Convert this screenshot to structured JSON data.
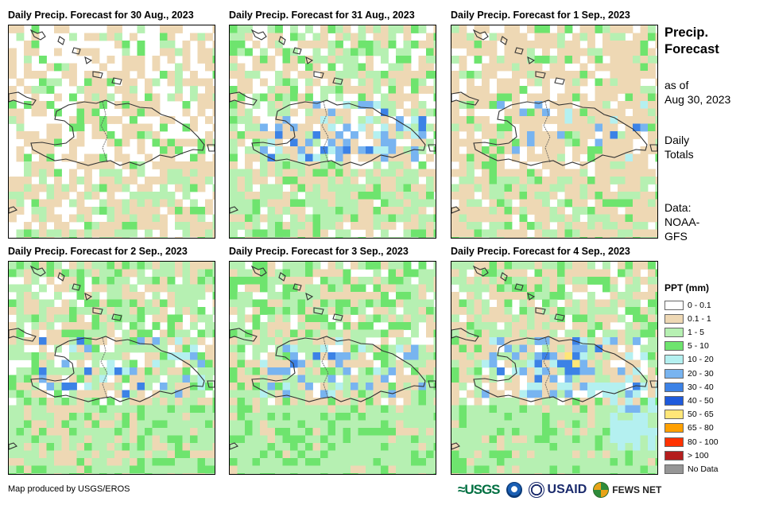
{
  "panels": [
    {
      "title": "Daily Precip. Forecast for 30 Aug., 2023",
      "seed": 11,
      "green": 0.16,
      "tan": 0.42,
      "blue": 0.0,
      "south": 0.65
    },
    {
      "title": "Daily Precip. Forecast for 31 Aug., 2023",
      "seed": 23,
      "green": 0.45,
      "tan": 0.3,
      "blue": 0.08,
      "south": 0.55
    },
    {
      "title": "Daily Precip. Forecast for 1 Sep., 2023",
      "seed": 37,
      "green": 0.22,
      "tan": 0.55,
      "blue": 0.02,
      "south": 0.35
    },
    {
      "title": "Daily Precip. Forecast for 2 Sep., 2023",
      "seed": 41,
      "green": 0.55,
      "tan": 0.32,
      "blue": 0.05,
      "south": 0.5
    },
    {
      "title": "Daily Precip. Forecast for 3 Sep., 2023",
      "seed": 53,
      "green": 0.6,
      "tan": 0.3,
      "blue": 0.06,
      "south": 0.75
    },
    {
      "title": "Daily Precip. Forecast for 4 Sep., 2023",
      "seed": 67,
      "green": 0.58,
      "tan": 0.3,
      "blue": 0.1,
      "south": 0.85
    }
  ],
  "sidebar": {
    "title_line1": "Precip.",
    "title_line2": "Forecast",
    "asof_line1": "as of",
    "asof_line2": "Aug 30, 2023",
    "daily_line1": "Daily",
    "daily_line2": "Totals",
    "data_line1": "Data:",
    "data_line2": "NOAA-",
    "data_line3": "GFS"
  },
  "legend": {
    "title": "PPT (mm)",
    "items": [
      {
        "label": "0 - 0.1",
        "color": "#ffffff"
      },
      {
        "label": "0.1 - 1",
        "color": "#eed8b4"
      },
      {
        "label": "1 - 5",
        "color": "#b6f0b2"
      },
      {
        "label": "5 - 10",
        "color": "#6ee46e"
      },
      {
        "label": "10 - 20",
        "color": "#b4f0f0"
      },
      {
        "label": "20 - 30",
        "color": "#78b4f0"
      },
      {
        "label": "30 - 40",
        "color": "#3c82e6"
      },
      {
        "label": "40 - 50",
        "color": "#1e5adc"
      },
      {
        "label": "50 - 65",
        "color": "#ffe678"
      },
      {
        "label": "65 - 80",
        "color": "#ffa000"
      },
      {
        "label": "80 - 100",
        "color": "#ff3200"
      },
      {
        "label": "> 100",
        "color": "#b41e1e"
      },
      {
        "label": "No Data",
        "color": "#969696"
      }
    ]
  },
  "footer": {
    "credit": "Map produced by USGS/EROS",
    "logo_usgs": "≈USGS",
    "logo_usaid": "USAID",
    "logo_fews": "FEWS NET"
  }
}
